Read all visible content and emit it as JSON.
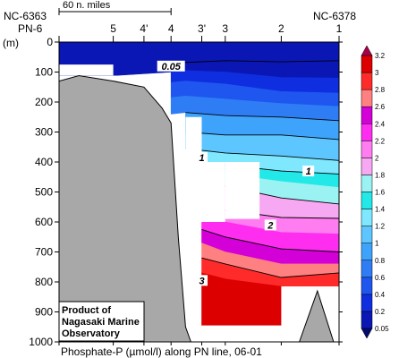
{
  "header": {
    "scale_bar_label": "60 n. miles",
    "left_station_code": "NC-6363",
    "left_line_code": "PN-6",
    "right_station_code": "NC-6378",
    "depth_unit_label": "(m)"
  },
  "credit": {
    "lines": [
      "Product of",
      "Nagasaki Marine",
      "Observatory"
    ]
  },
  "footer": {
    "caption": "Phosphate-P (µmol/l) along PN line, 06-01"
  },
  "chart_data": {
    "type": "heatmap",
    "title": "Phosphate-P (µmol/l) along PN line, 06-01",
    "ylabel": "(m)",
    "y_direction": "down",
    "ylim": [
      0,
      1000
    ],
    "y_ticks": [
      0,
      100,
      200,
      300,
      400,
      500,
      600,
      700,
      800,
      900,
      1000
    ],
    "stations": [
      {
        "label": "PN-6",
        "dist": 0
      },
      {
        "label": "5",
        "dist": 60
      },
      {
        "label": "4'",
        "dist": 94
      },
      {
        "label": "4",
        "dist": 124
      },
      {
        "label": "3'",
        "dist": 158
      },
      {
        "label": "3",
        "dist": 184
      },
      {
        "label": "2",
        "dist": 246
      },
      {
        "label": "1",
        "dist": 310
      }
    ],
    "xlim": [
      0,
      310
    ],
    "scale_bar": {
      "label": "60 n. miles",
      "from": 0,
      "to": 124
    },
    "colorbar": {
      "levels": [
        0.05,
        0.2,
        0.4,
        0.6,
        0.8,
        1,
        1.2,
        1.4,
        1.6,
        1.8,
        2,
        2.2,
        2.4,
        2.6,
        2.8,
        3,
        3.2
      ],
      "tick_labels": [
        "0.05",
        "0.2",
        "0.4",
        "0.6",
        "0.8",
        "1",
        "1.2",
        "1.4",
        "1.6",
        "1.8",
        "2",
        "2.2",
        "2.4",
        "2.6",
        "2.8",
        "3",
        "3.2"
      ],
      "colors": [
        "#0b17b4",
        "#0f2ee0",
        "#1f56f0",
        "#2f7df5",
        "#3ea3fb",
        "#5ec6ff",
        "#7fe8ff",
        "#22e8e8",
        "#9af2f2",
        "#f7a8f2",
        "#ff7df0",
        "#ff2df0",
        "#d400d8",
        "#ff8080",
        "#ff2b2b",
        "#dd0000"
      ],
      "extend": "both"
    },
    "contour_labels": [
      {
        "text": "0.05",
        "dist": 124,
        "depth": 80
      },
      {
        "text": "1",
        "dist": 158,
        "depth": 385
      },
      {
        "text": "1",
        "dist": 276,
        "depth": 430
      },
      {
        "text": "2",
        "dist": 234,
        "depth": 610
      },
      {
        "text": "3",
        "dist": 158,
        "depth": 795
      }
    ],
    "field": [
      {
        "from": 0,
        "to": 0.05,
        "points": [
          [
            0,
            0
          ],
          [
            310,
            0
          ],
          [
            310,
            62
          ],
          [
            246,
            66
          ],
          [
            184,
            62
          ],
          [
            124,
            70
          ],
          [
            60,
            72
          ],
          [
            0,
            75
          ]
        ]
      },
      {
        "from": 0.05,
        "to": 0.2,
        "points": [
          [
            0,
            75
          ],
          [
            60,
            72
          ],
          [
            124,
            70
          ],
          [
            184,
            62
          ],
          [
            246,
            66
          ],
          [
            310,
            62
          ],
          [
            310,
            120
          ],
          [
            246,
            118
          ],
          [
            184,
            100
          ],
          [
            140,
            95
          ],
          [
            124,
            100
          ],
          [
            60,
            112
          ],
          [
            0,
            112
          ]
        ]
      },
      {
        "from": 0.2,
        "to": 0.4,
        "points": [
          [
            124,
            100
          ],
          [
            140,
            95
          ],
          [
            184,
            100
          ],
          [
            246,
            118
          ],
          [
            310,
            120
          ],
          [
            310,
            170
          ],
          [
            246,
            165
          ],
          [
            184,
            140
          ],
          [
            140,
            130
          ],
          [
            124,
            135
          ]
        ]
      },
      {
        "from": 0.4,
        "to": 0.6,
        "points": [
          [
            124,
            135
          ],
          [
            140,
            130
          ],
          [
            184,
            140
          ],
          [
            246,
            165
          ],
          [
            310,
            170
          ],
          [
            310,
            215
          ],
          [
            246,
            205
          ],
          [
            184,
            190
          ],
          [
            140,
            180
          ],
          [
            124,
            185
          ]
        ]
      },
      {
        "from": 0.6,
        "to": 0.8,
        "points": [
          [
            124,
            185
          ],
          [
            140,
            180
          ],
          [
            184,
            190
          ],
          [
            246,
            205
          ],
          [
            310,
            215
          ],
          [
            310,
            262
          ],
          [
            246,
            250
          ],
          [
            184,
            245
          ],
          [
            140,
            235
          ],
          [
            124,
            240
          ]
        ]
      },
      {
        "from": 0.8,
        "to": 1.0,
        "points": [
          [
            140,
            235
          ],
          [
            184,
            245
          ],
          [
            246,
            250
          ],
          [
            310,
            262
          ],
          [
            310,
            325
          ],
          [
            246,
            310
          ],
          [
            184,
            310
          ],
          [
            140,
            300
          ]
        ]
      },
      {
        "from": 1.0,
        "to": 1.2,
        "points": [
          [
            140,
            300
          ],
          [
            184,
            310
          ],
          [
            246,
            310
          ],
          [
            310,
            325
          ],
          [
            310,
            395
          ],
          [
            246,
            380
          ],
          [
            184,
            370
          ],
          [
            140,
            355
          ]
        ]
      },
      {
        "from": 1.2,
        "to": 1.4,
        "points": [
          [
            140,
            355
          ],
          [
            184,
            370
          ],
          [
            246,
            380
          ],
          [
            310,
            395
          ],
          [
            310,
            440
          ],
          [
            246,
            430
          ],
          [
            184,
            410
          ],
          [
            150,
            395
          ]
        ]
      },
      {
        "from": 1.4,
        "to": 1.6,
        "points": [
          [
            150,
            395
          ],
          [
            184,
            410
          ],
          [
            246,
            430
          ],
          [
            310,
            440
          ],
          [
            310,
            485
          ],
          [
            246,
            465
          ],
          [
            184,
            440
          ],
          [
            158,
            420
          ]
        ]
      },
      {
        "from": 1.6,
        "to": 1.8,
        "points": [
          [
            158,
            420
          ],
          [
            184,
            440
          ],
          [
            246,
            465
          ],
          [
            310,
            485
          ],
          [
            310,
            540
          ],
          [
            246,
            520
          ],
          [
            184,
            480
          ],
          [
            158,
            460
          ]
        ]
      },
      {
        "from": 1.8,
        "to": 2.0,
        "points": [
          [
            158,
            460
          ],
          [
            184,
            480
          ],
          [
            246,
            520
          ],
          [
            310,
            540
          ],
          [
            310,
            588
          ],
          [
            246,
            585
          ],
          [
            184,
            560
          ],
          [
            158,
            540
          ]
        ]
      },
      {
        "from": 2.0,
        "to": 2.2,
        "points": [
          [
            158,
            540
          ],
          [
            184,
            560
          ],
          [
            246,
            585
          ],
          [
            310,
            588
          ],
          [
            310,
            640
          ],
          [
            246,
            635
          ],
          [
            184,
            600
          ],
          [
            158,
            580
          ]
        ]
      },
      {
        "from": 2.2,
        "to": 2.4,
        "points": [
          [
            158,
            580
          ],
          [
            184,
            600
          ],
          [
            246,
            635
          ],
          [
            310,
            640
          ],
          [
            310,
            700
          ],
          [
            246,
            690
          ],
          [
            184,
            650
          ],
          [
            158,
            625
          ]
        ]
      },
      {
        "from": 2.4,
        "to": 2.6,
        "points": [
          [
            158,
            625
          ],
          [
            184,
            650
          ],
          [
            246,
            690
          ],
          [
            310,
            700
          ],
          [
            310,
            740
          ],
          [
            246,
            740
          ],
          [
            184,
            700
          ],
          [
            158,
            670
          ]
        ]
      },
      {
        "from": 2.6,
        "to": 2.8,
        "points": [
          [
            158,
            670
          ],
          [
            184,
            700
          ],
          [
            246,
            740
          ],
          [
            310,
            740
          ],
          [
            310,
            770
          ],
          [
            246,
            785
          ],
          [
            184,
            740
          ],
          [
            158,
            720
          ]
        ]
      },
      {
        "from": 2.8,
        "to": 3.0,
        "points": [
          [
            158,
            720
          ],
          [
            184,
            740
          ],
          [
            246,
            785
          ],
          [
            310,
            770
          ],
          [
            310,
            815
          ],
          [
            246,
            815
          ],
          [
            184,
            790
          ],
          [
            158,
            770
          ]
        ]
      },
      {
        "from": 3.0,
        "to": 3.2,
        "points": [
          [
            158,
            770
          ],
          [
            184,
            790
          ],
          [
            246,
            815
          ],
          [
            246,
            945
          ],
          [
            158,
            945
          ]
        ]
      }
    ],
    "contour_lines": [
      [
        [
          124,
          70
        ],
        [
          184,
          62
        ],
        [
          246,
          66
        ],
        [
          310,
          62
        ]
      ],
      [
        [
          140,
          235
        ],
        [
          184,
          245
        ],
        [
          246,
          250
        ],
        [
          310,
          262
        ]
      ],
      [
        [
          140,
          300
        ],
        [
          184,
          310
        ],
        [
          246,
          310
        ],
        [
          310,
          325
        ]
      ],
      [
        [
          140,
          355
        ],
        [
          184,
          370
        ],
        [
          246,
          380
        ],
        [
          310,
          395
        ]
      ],
      [
        [
          150,
          395
        ],
        [
          184,
          410
        ],
        [
          246,
          430
        ],
        [
          310,
          440
        ]
      ],
      [
        [
          158,
          460
        ],
        [
          184,
          480
        ],
        [
          246,
          520
        ],
        [
          310,
          540
        ]
      ],
      [
        [
          158,
          540
        ],
        [
          184,
          560
        ],
        [
          246,
          585
        ],
        [
          310,
          588
        ]
      ],
      [
        [
          158,
          625
        ],
        [
          184,
          650
        ],
        [
          246,
          690
        ],
        [
          310,
          700
        ]
      ],
      [
        [
          158,
          720
        ],
        [
          184,
          740
        ],
        [
          246,
          785
        ],
        [
          310,
          770
        ]
      ]
    ],
    "no_data_regions": [
      [
        [
          0,
          75
        ],
        [
          60,
          75
        ],
        [
          60,
          112
        ],
        [
          0,
          112
        ]
      ],
      [
        [
          60,
          112
        ],
        [
          94,
          112
        ],
        [
          94,
          150
        ],
        [
          60,
          150
        ]
      ],
      [
        [
          94,
          112
        ],
        [
          114,
          112
        ],
        [
          114,
          250
        ],
        [
          94,
          250
        ]
      ],
      [
        [
          140,
          250
        ],
        [
          158,
          250
        ],
        [
          158,
          600
        ],
        [
          140,
          600
        ]
      ],
      [
        [
          158,
          400
        ],
        [
          184,
          400
        ],
        [
          184,
          600
        ],
        [
          158,
          600
        ]
      ],
      [
        [
          184,
          400
        ],
        [
          222,
          400
        ],
        [
          222,
          590
        ],
        [
          184,
          590
        ]
      ],
      [
        [
          184,
          945
        ],
        [
          310,
          945
        ],
        [
          310,
          1000
        ],
        [
          184,
          1000
        ]
      ],
      [
        [
          246,
          815
        ],
        [
          310,
          815
        ],
        [
          310,
          1000
        ],
        [
          246,
          1000
        ]
      ],
      [
        [
          158,
          945
        ],
        [
          184,
          945
        ],
        [
          184,
          1000
        ],
        [
          158,
          1000
        ]
      ]
    ],
    "bathymetry": [
      [
        [
          0,
          1000
        ],
        [
          0,
          130
        ],
        [
          22,
          112
        ],
        [
          60,
          130
        ],
        [
          94,
          150
        ],
        [
          114,
          220
        ],
        [
          124,
          270
        ],
        [
          132,
          650
        ],
        [
          140,
          950
        ],
        [
          146,
          1000
        ]
      ],
      [
        [
          266,
          1000
        ],
        [
          286,
          830
        ],
        [
          304,
          1000
        ]
      ]
    ]
  }
}
